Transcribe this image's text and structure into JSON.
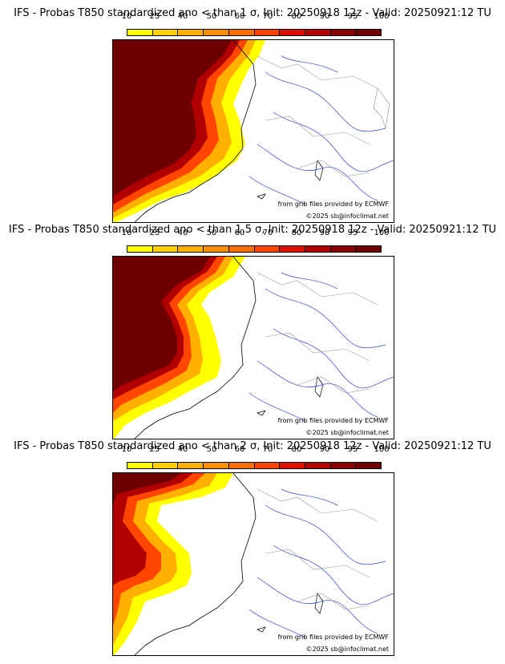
{
  "colorbar": {
    "labels": [
      "10",
      "25",
      "40",
      "50",
      "60",
      "70",
      "80",
      "90",
      "95",
      "100"
    ],
    "colors": [
      "#ffff00",
      "#ffd000",
      "#ffb000",
      "#ff9000",
      "#ff7000",
      "#ff4500",
      "#dd1000",
      "#b00000",
      "#880000",
      "#6e0000"
    ]
  },
  "credits": {
    "source": "from grib files provided by ECMWF",
    "copyright": "©2025 sb@infoclimat.net"
  },
  "panels": [
    {
      "title": "IFS - Probas T850  standardized ano < than 1 σ, Init: 20250918 12z - Valid: 20250921:12 TU"
    },
    {
      "title": "IFS - Probas T850  standardized ano < than 1.5 σ, Init: 20250918 12z - Valid: 20250921:12 TU"
    },
    {
      "title": "IFS - Probas T850  standardized ano < than 2 σ, Init: 20250918 12z - Valid: 20250921:12 TU"
    }
  ],
  "map_icons": [
    "coastline-icon",
    "border-icon",
    "river-icon"
  ]
}
